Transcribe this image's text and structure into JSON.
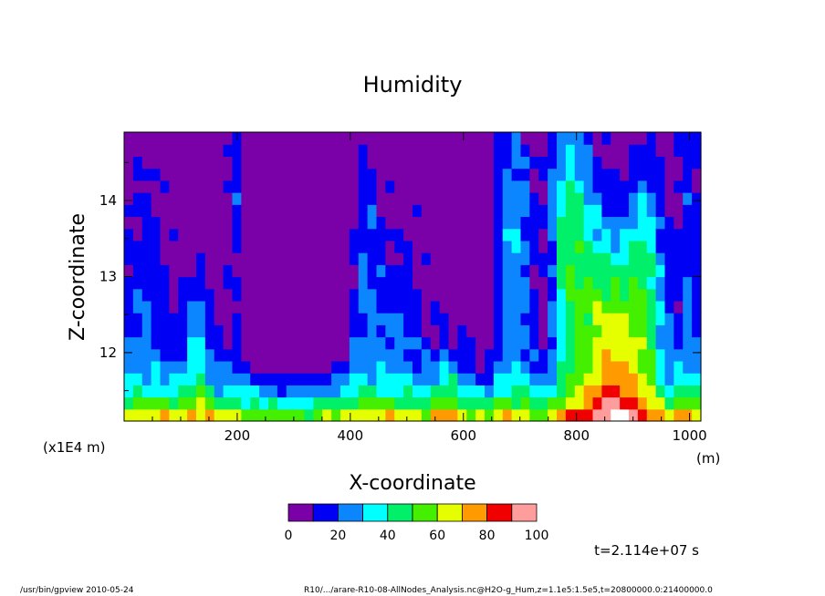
{
  "chart_data": {
    "type": "heatmap",
    "title": "Humidity",
    "xlabel": "X-coordinate",
    "ylabel": "Z-coordinate",
    "x_unit": "(m)",
    "y_unit": "(x1E4 m)",
    "xlim": [
      0,
      1020
    ],
    "ylim": [
      11.1,
      14.9
    ],
    "x_ticks": [
      200,
      400,
      600,
      800,
      1000
    ],
    "y_ticks": [
      12,
      13,
      14
    ],
    "color_levels": [
      0,
      10,
      20,
      30,
      40,
      50,
      60,
      70,
      80,
      90,
      100
    ],
    "colorbar_labels": [
      "0",
      "20",
      "40",
      "60",
      "80",
      "100"
    ],
    "colors": [
      "#7a00a8",
      "#0000f5",
      "#0c86ff",
      "#00ffff",
      "#00f06a",
      "#44f000",
      "#e6ff00",
      "#ff9a00",
      "#f00000",
      "#ff9c9c"
    ],
    "above_max_color": "#ffffff",
    "time_label": "t=2.114e+07 s"
  },
  "footer": {
    "program": "/usr/bin/gpview  2010-05-24",
    "source": "R10/.../arare-R10-08-AllNodes_Analysis.nc@H2O-g_Hum,z=1.1e5:1.5e5,t=20800000.0:21400000.0"
  }
}
